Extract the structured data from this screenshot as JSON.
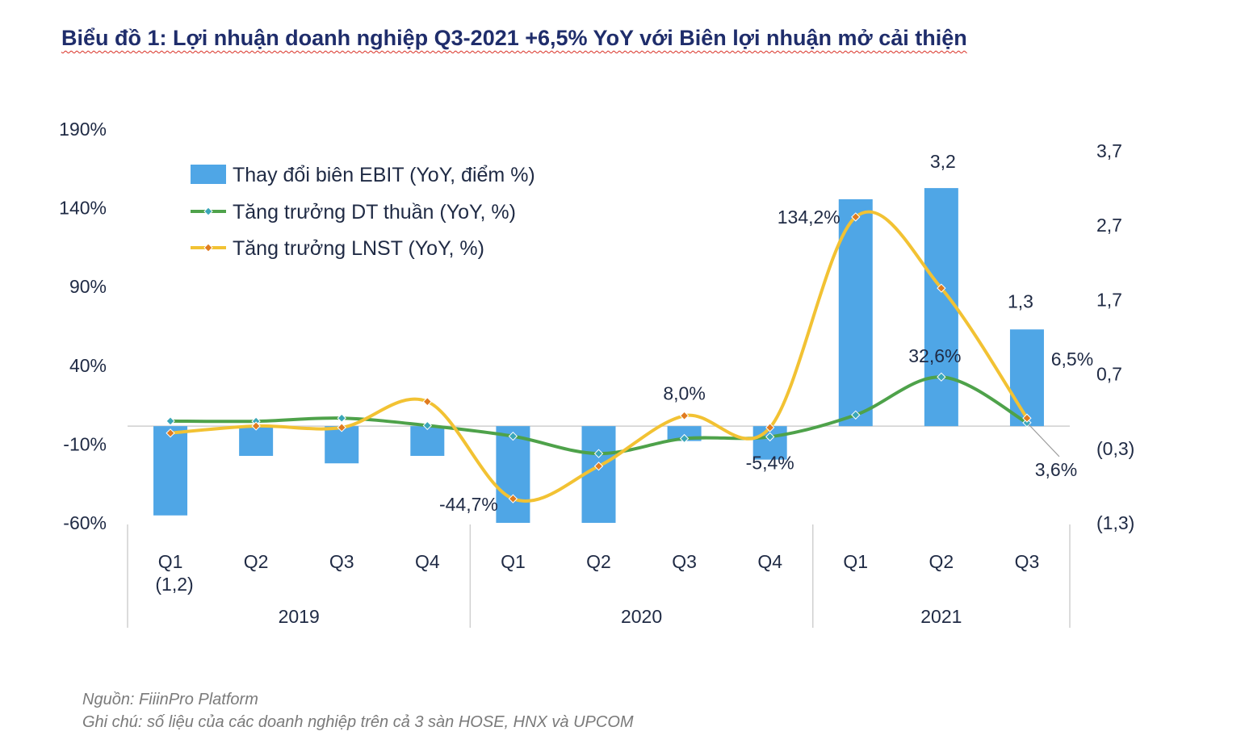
{
  "title": "Biểu đồ 1: Lợi nhuận doanh nghiệp Q3-2021 +6,5% YoY với Biên lợi nhuận mở cải thiện",
  "footer": {
    "source": "Nguồn: FiiinPro Platform",
    "note": "Ghi chú: số liệu của các doanh nghiệp trên cả 3 sàn HOSE, HNX và UPCOM"
  },
  "chart_data": {
    "type": "bar",
    "categories": [
      "Q1",
      "Q2",
      "Q3",
      "Q4",
      "Q1",
      "Q2",
      "Q3",
      "Q4",
      "Q1",
      "Q2",
      "Q3"
    ],
    "groups": [
      {
        "label": "2019",
        "count": 4
      },
      {
        "label": "2020",
        "count": 4
      },
      {
        "label": "2021",
        "count": 3
      }
    ],
    "left_axis": {
      "ticks": [
        "190%",
        "140%",
        "90%",
        "40%",
        "-10%",
        "-60%"
      ],
      "range": [
        -60,
        190
      ]
    },
    "right_axis": {
      "ticks": [
        "3,7",
        "2,7",
        "1,7",
        "0,7",
        "(0,3)",
        "(1,3)"
      ],
      "range": [
        -1.3,
        3.7
      ]
    },
    "legend_position": "top-left",
    "grid": false,
    "series": [
      {
        "name": "Thay đổi biên EBIT (YoY, điểm %)",
        "type": "bar",
        "axis": "right",
        "color": "#4fa6e6",
        "values": [
          -1.2,
          -0.4,
          -0.5,
          -0.4,
          -1.3,
          -1.3,
          -0.2,
          -0.45,
          3.05,
          3.2,
          1.3
        ]
      },
      {
        "name": "Tăng trưởng DT thuần (YoY, %)",
        "type": "line",
        "axis": "left",
        "color": "#4ea24a",
        "marker_color": "#3aa6b8",
        "values": [
          4.6,
          4.5,
          6.5,
          1.8,
          -5.0,
          -16.0,
          -6.5,
          -5.4,
          8.5,
          32.6,
          3.6
        ]
      },
      {
        "name": "Tăng trưởng LNST (YoY, %)",
        "type": "line",
        "axis": "left",
        "color": "#f2c233",
        "marker_color": "#e07b1f",
        "values": [
          -3.0,
          1.5,
          0.5,
          17.0,
          -44.7,
          -24.0,
          8.0,
          0.5,
          134.2,
          89.0,
          6.5
        ]
      }
    ],
    "data_labels": [
      {
        "text": "(1,2)",
        "series": 0,
        "index": 0
      },
      {
        "text": "3,2",
        "series": 0,
        "index": 9
      },
      {
        "text": "1,3",
        "series": 0,
        "index": 10
      },
      {
        "text": "-44,7%",
        "series": 2,
        "index": 4
      },
      {
        "text": "8,0%",
        "series": 2,
        "index": 6
      },
      {
        "text": "-5,4%",
        "series": 1,
        "index": 7
      },
      {
        "text": "134,2%",
        "series": 2,
        "index": 8
      },
      {
        "text": "32,6%",
        "series": 1,
        "index": 9
      },
      {
        "text": "6,5%",
        "series": 2,
        "index": 10
      },
      {
        "text": "3,6%",
        "series": 1,
        "index": 10
      }
    ]
  }
}
